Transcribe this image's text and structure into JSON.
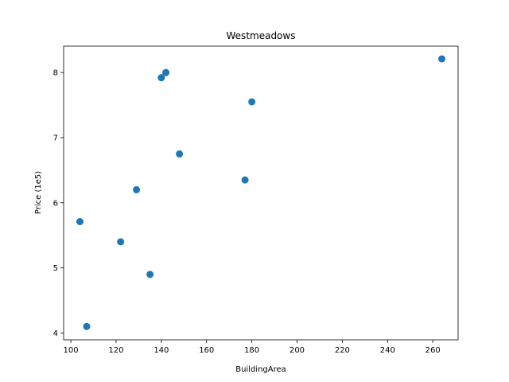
{
  "chart_data": {
    "type": "scatter",
    "title": "Westmeadows",
    "xlabel": "BuildingArea",
    "ylabel": "Price (1e5)",
    "xlim": [
      96.8,
      271.2
    ],
    "ylim": [
      3.895,
      8.405
    ],
    "xticks": [
      100,
      120,
      140,
      160,
      180,
      200,
      220,
      240,
      260
    ],
    "yticks": [
      4,
      5,
      6,
      7,
      8
    ],
    "grid": false,
    "marker_color": "#1f77b4",
    "points": [
      {
        "x": 104,
        "y": 5.71
      },
      {
        "x": 107,
        "y": 4.1
      },
      {
        "x": 122,
        "y": 5.4
      },
      {
        "x": 129,
        "y": 6.2
      },
      {
        "x": 135,
        "y": 4.9
      },
      {
        "x": 140,
        "y": 7.92
      },
      {
        "x": 142,
        "y": 8.0
      },
      {
        "x": 148,
        "y": 6.75
      },
      {
        "x": 177,
        "y": 6.35
      },
      {
        "x": 180,
        "y": 7.55
      },
      {
        "x": 264,
        "y": 8.21
      }
    ]
  }
}
